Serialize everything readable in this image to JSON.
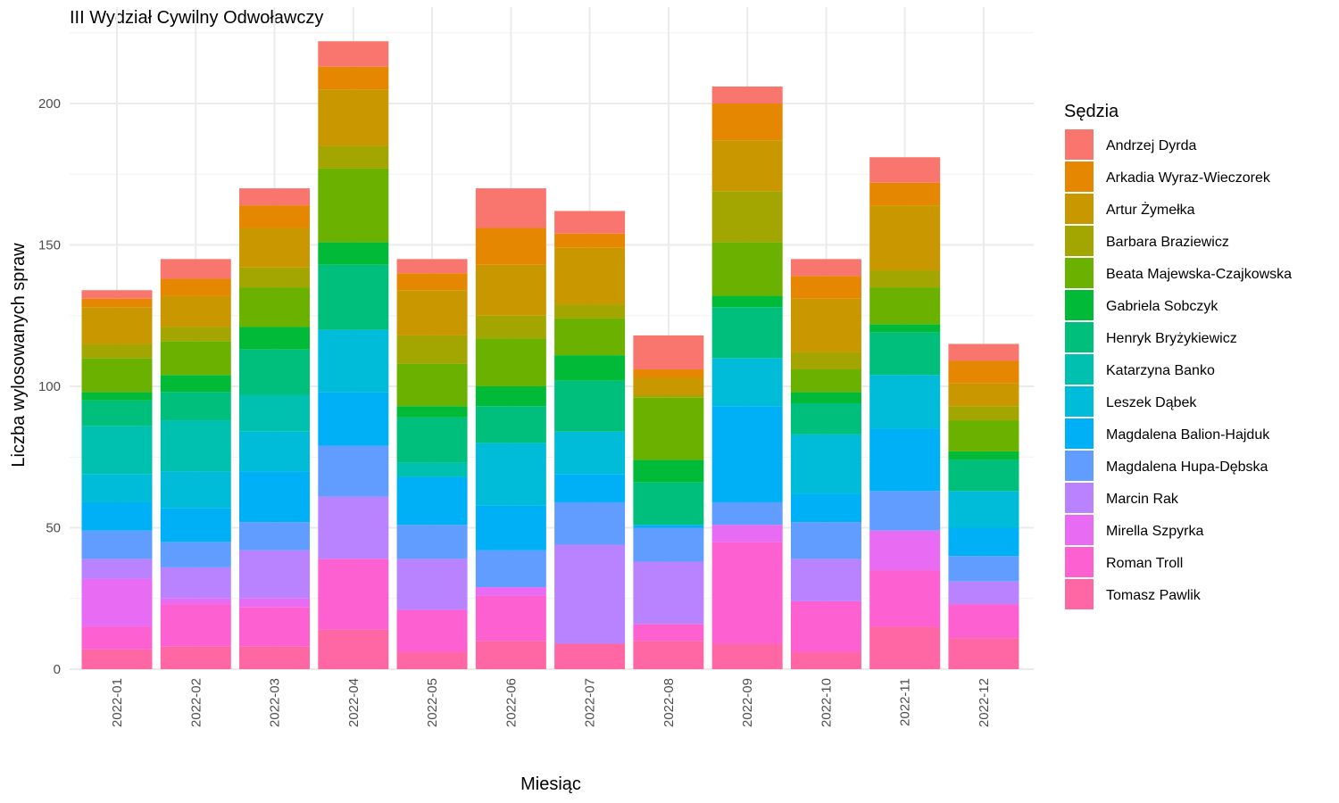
{
  "chart_data": {
    "type": "bar",
    "stacked": true,
    "title": "III Wydział Cywilny Odwoławczy",
    "xlabel": "Miesiąc",
    "ylabel": "Liczba wylosowanych spraw",
    "ylim": [
      0,
      225
    ],
    "yticks": [
      0,
      50,
      100,
      150,
      200
    ],
    "grid": true,
    "legend_title": "Sędzia",
    "legend_position": "right",
    "categories": [
      "2022-01",
      "2022-02",
      "2022-03",
      "2022-04",
      "2022-05",
      "2022-06",
      "2022-07",
      "2022-08",
      "2022-09",
      "2022-10",
      "2022-11",
      "2022-12"
    ],
    "series": [
      {
        "name": "Andrzej Dyrda",
        "color": "#F8766D",
        "values": [
          3,
          7,
          6,
          9,
          5,
          14,
          8,
          12,
          6,
          6,
          9,
          6
        ]
      },
      {
        "name": "Arkadia Wyraz-Wieczorek",
        "color": "#E58700",
        "values": [
          3,
          6,
          8,
          8,
          6,
          13,
          5,
          3,
          13,
          8,
          8,
          8
        ]
      },
      {
        "name": "Artur Żymełka",
        "color": "#C99800",
        "values": [
          13,
          11,
          14,
          20,
          16,
          18,
          20,
          6,
          18,
          19,
          23,
          8
        ]
      },
      {
        "name": "Barbara Braziewicz",
        "color": "#A3A500",
        "values": [
          5,
          5,
          7,
          8,
          10,
          8,
          5,
          1,
          18,
          6,
          6,
          5
        ]
      },
      {
        "name": "Beata Majewska-Czajkowska",
        "color": "#6BB100",
        "values": [
          12,
          12,
          14,
          26,
          15,
          17,
          13,
          22,
          19,
          8,
          13,
          11
        ]
      },
      {
        "name": "Gabriela Sobczyk",
        "color": "#00BA38",
        "values": [
          3,
          6,
          8,
          8,
          4,
          7,
          9,
          8,
          4,
          4,
          3,
          3
        ]
      },
      {
        "name": "Henryk Bryżykiewicz",
        "color": "#00BF7D",
        "values": [
          9,
          10,
          16,
          23,
          16,
          13,
          18,
          15,
          18,
          11,
          15,
          11
        ]
      },
      {
        "name": "Katarzyna Banko",
        "color": "#00C0AF",
        "values": [
          17,
          18,
          13,
          0,
          5,
          0,
          0,
          0,
          0,
          0,
          0,
          0
        ]
      },
      {
        "name": "Leszek Dąbek",
        "color": "#00BCD8",
        "values": [
          10,
          13,
          14,
          22,
          0,
          22,
          15,
          0,
          17,
          21,
          19,
          13
        ]
      },
      {
        "name": "Magdalena Balion-Hajduk",
        "color": "#00B0F6",
        "values": [
          10,
          12,
          18,
          19,
          17,
          16,
          10,
          1,
          34,
          10,
          22,
          10
        ]
      },
      {
        "name": "Magdalena Hupa-Dębska",
        "color": "#619CFF",
        "values": [
          10,
          9,
          10,
          18,
          12,
          13,
          15,
          12,
          8,
          13,
          14,
          9
        ]
      },
      {
        "name": "Marcin Rak",
        "color": "#B983FF",
        "values": [
          7,
          11,
          17,
          22,
          18,
          0,
          35,
          22,
          0,
          15,
          0,
          8
        ]
      },
      {
        "name": "Mirella Szpyrka",
        "color": "#E76BF3",
        "values": [
          17,
          2,
          3,
          0,
          0,
          3,
          0,
          0,
          6,
          0,
          14,
          0
        ]
      },
      {
        "name": "Roman Troll",
        "color": "#FD61D1",
        "values": [
          8,
          15,
          14,
          25,
          15,
          16,
          0,
          6,
          36,
          18,
          20,
          12
        ]
      },
      {
        "name": "Tomasz Pawlik",
        "color": "#FF67A4",
        "values": [
          7,
          8,
          8,
          14,
          6,
          10,
          9,
          10,
          9,
          6,
          15,
          11
        ]
      }
    ]
  }
}
